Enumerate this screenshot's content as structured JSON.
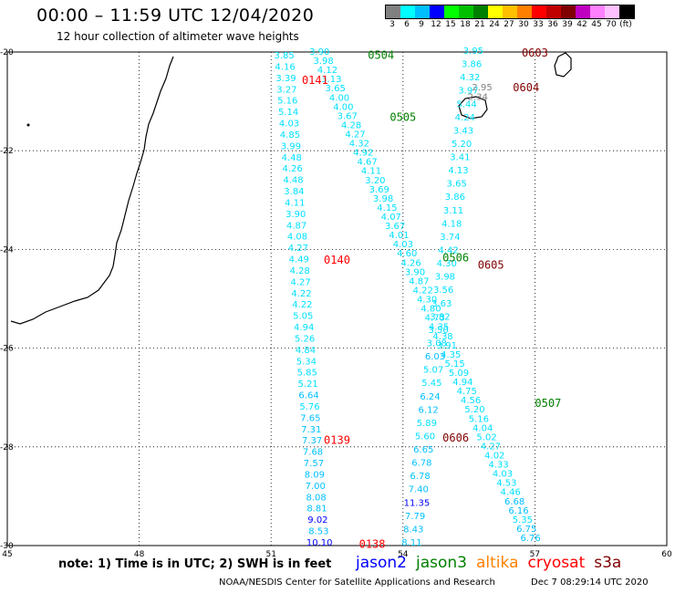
{
  "header": {
    "title": "00:00 – 11:59 UTC 12/04/2020",
    "subtitle": "12 hour collection of altimeter wave heights"
  },
  "colorbar": {
    "unit": "(ft)",
    "bins": [
      {
        "color": "#808080",
        "label": "3"
      },
      {
        "color": "#00ffff",
        "label": "6"
      },
      {
        "color": "#00bfff",
        "label": "9"
      },
      {
        "color": "#0000ff",
        "label": "12"
      },
      {
        "color": "#00ff00",
        "label": "15"
      },
      {
        "color": "#00c000",
        "label": "18"
      },
      {
        "color": "#008000",
        "label": "21"
      },
      {
        "color": "#ffff00",
        "label": "24"
      },
      {
        "color": "#ffc000",
        "label": "27"
      },
      {
        "color": "#ff8000",
        "label": "30"
      },
      {
        "color": "#ff0000",
        "label": "33"
      },
      {
        "color": "#c00000",
        "label": "36"
      },
      {
        "color": "#800000",
        "label": "39"
      },
      {
        "color": "#c000c0",
        "label": "42"
      },
      {
        "color": "#ff80ff",
        "label": "45"
      },
      {
        "color": "#ffc0ff",
        "label": "70"
      },
      {
        "color": "#000000",
        "label": ""
      }
    ]
  },
  "map": {
    "lon_range": [
      45,
      60
    ],
    "lat_range": [
      -20,
      -30
    ],
    "lon_ticks": [
      "45",
      "48",
      "51",
      "54",
      "57",
      "60"
    ],
    "lat_ticks": [
      "-20",
      "-22",
      "-24",
      "-26",
      "-28",
      "-30"
    ],
    "track_labels": [
      {
        "text": "0504",
        "color": "#008000",
        "lon": 53.5,
        "lat": -20.05
      },
      {
        "text": "0141",
        "color": "#ff0000",
        "lon": 52.0,
        "lat": -20.55
      },
      {
        "text": "0505",
        "color": "#008000",
        "lon": 54.0,
        "lat": -21.3
      },
      {
        "text": "0603",
        "color": "#800000",
        "lon": 57.0,
        "lat": -20.0
      },
      {
        "text": "0604",
        "color": "#800000",
        "lon": 56.8,
        "lat": -20.7
      },
      {
        "text": "0140",
        "color": "#ff0000",
        "lon": 52.5,
        "lat": -24.2
      },
      {
        "text": "0506",
        "color": "#008000",
        "lon": 55.2,
        "lat": -24.15
      },
      {
        "text": "0605",
        "color": "#800000",
        "lon": 56.0,
        "lat": -24.3
      },
      {
        "text": "0507",
        "color": "#008000",
        "lon": 57.3,
        "lat": -27.1
      },
      {
        "text": "0139",
        "color": "#ff0000",
        "lon": 52.5,
        "lat": -27.85
      },
      {
        "text": "0606",
        "color": "#800000",
        "lon": 55.2,
        "lat": -27.8
      },
      {
        "text": "0138",
        "color": "#ff0000",
        "lon": 53.3,
        "lat": -29.95
      }
    ],
    "track_a": {
      "lon_top": 51.3,
      "lon_bottom": 52.1,
      "values": [
        "3.85",
        "4.16",
        "3.39",
        "3.27",
        "5.16",
        "5.14",
        "4.03",
        "4.85",
        "3.99",
        "4.48",
        "4.26",
        "4.48",
        "3.84",
        "4.11",
        "3.90",
        "4.87",
        "4.08",
        "4.27",
        "4.49",
        "4.28",
        "4.27",
        "4.22",
        "4.22",
        "5.05",
        "4.94",
        "5.26",
        "4.84",
        "5.34",
        "5.85",
        "5.21",
        "6.64",
        "5.76",
        "7.65",
        "7.31",
        "7.37",
        "7.68",
        "7.57",
        "8.09",
        "7.00",
        "8.08",
        "8.81",
        "9.02",
        "8.53",
        "10.10"
      ]
    },
    "track_b": {
      "lon_top": 52.1,
      "lon_bottom": 56.9,
      "values": [
        "3.90",
        "3.98",
        "4.12",
        "3.13",
        "3.65",
        "4.00",
        "4.00",
        "3.67",
        "4.28",
        "4.27",
        "4.32",
        "4.92",
        "4.67",
        "4.11",
        "3.20",
        "3.69",
        "3.98",
        "4.15",
        "4.07",
        "3.67",
        "4.01",
        "4.03",
        "4.60",
        "4.26",
        "3.90",
        "4.87",
        "4.22",
        "4.30",
        "4.80",
        "4.73",
        "4.35",
        "4.38",
        "3.91",
        "4.35",
        "5.15",
        "5.09",
        "4.94",
        "4.75",
        "4.56",
        "5.20",
        "5.16",
        "4.04",
        "5.02",
        "4.27",
        "4.02",
        "4.33",
        "4.03",
        "4.53",
        "4.46",
        "6.68",
        "6.16",
        "5.35",
        "6.75",
        "6.76"
      ]
    },
    "track_c": {
      "lon_top": 55.6,
      "lon_bottom": 54.2,
      "values": [
        "3.95",
        "3.86",
        "4.32",
        "3.97",
        "5.44",
        "4.24",
        "3.43",
        "5.20",
        "3.41",
        "4.13",
        "3.65",
        "3.86",
        "3.11",
        "4.18",
        "3.74",
        "4.42",
        "4.30",
        "3.98",
        "3.56",
        "3.63",
        "3.82",
        "3.50",
        "3.08",
        "6.03",
        "5.07",
        "5.45",
        "6.24",
        "6.12",
        "5.89",
        "5.60",
        "6.65",
        "6.78",
        "6.78",
        "7.40",
        "11.35",
        "7.79",
        "8.43",
        "8.11"
      ]
    },
    "gray_values": [
      {
        "text": "2.95",
        "lon": 55.8,
        "lat": -20.7
      },
      {
        "text": "2.34",
        "lon": 55.7,
        "lat": -20.9
      }
    ]
  },
  "footer": {
    "note": "note:  1) Time is in UTC;  2) SWH is in feet",
    "satellites": [
      {
        "name": "jason2",
        "color": "#0000ff"
      },
      {
        "name": "jason3",
        "color": "#008000"
      },
      {
        "name": "altika",
        "color": "#ff8000"
      },
      {
        "name": "cryosat",
        "color": "#ff0000"
      },
      {
        "name": "s3a",
        "color": "#800000"
      }
    ],
    "source": "NOAA/NESDIS Center for Satellite Applications and Research",
    "date": "Dec  7 08:29:14 UTC 2020"
  }
}
